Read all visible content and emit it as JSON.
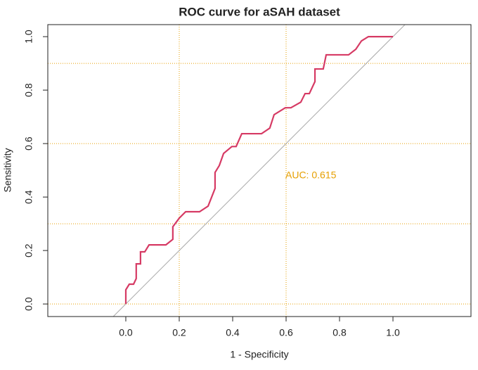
{
  "chart_data": {
    "type": "line",
    "title": "ROC curve for aSAH dataset",
    "x_label": "1 - Specificity",
    "y_label": "Sensitivity",
    "annotation": "AUC: 0.615",
    "annotation_color": "#e69f00",
    "xlim": [
      -0.292,
      1.292
    ],
    "ylim": [
      -0.047,
      1.045
    ],
    "xticks": [
      {
        "value": 0,
        "label": "0.0"
      },
      0.2,
      0.4,
      0.6,
      0.8,
      {
        "value": 1,
        "label": "1.0"
      }
    ],
    "yticks": [
      {
        "value": 0,
        "label": "0.0"
      },
      0.2,
      0.4,
      0.6,
      0.8,
      {
        "value": 1,
        "label": "1.0"
      }
    ],
    "grid_x": [
      0.2,
      0.6
    ],
    "grid_y": [
      0,
      0.3,
      0.6,
      0.9
    ],
    "grid_color": "#e69f00",
    "series": [
      {
        "color": "#d63a64",
        "x": [
          0,
          0,
          0.013,
          0.029,
          0.039,
          0.039,
          0.055,
          0.055,
          0.071,
          0.087,
          0.15,
          0.176,
          0.176,
          0.2,
          0.224,
          0.276,
          0.308,
          0.334,
          0.334,
          0.35,
          0.366,
          0.397,
          0.413,
          0.434,
          0.508,
          0.539,
          0.555,
          0.597,
          0.618,
          0.655,
          0.671,
          0.687,
          0.708,
          0.708,
          0.739,
          0.75,
          0.834,
          0.861,
          0.882,
          0.908,
          1
        ],
        "values": [
          0,
          0.053,
          0.074,
          0.074,
          0.095,
          0.15,
          0.15,
          0.195,
          0.195,
          0.221,
          0.221,
          0.242,
          0.289,
          0.321,
          0.345,
          0.345,
          0.366,
          0.432,
          0.492,
          0.518,
          0.563,
          0.589,
          0.589,
          0.637,
          0.637,
          0.658,
          0.708,
          0.734,
          0.734,
          0.755,
          0.787,
          0.787,
          0.832,
          0.879,
          0.879,
          0.932,
          0.932,
          0.953,
          0.984,
          1,
          1
        ]
      }
    ]
  }
}
